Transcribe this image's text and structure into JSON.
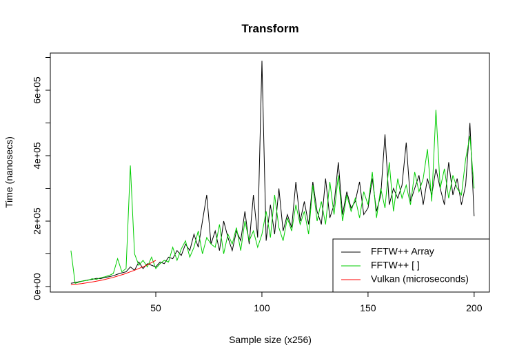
{
  "chart_data": {
    "type": "line",
    "title": "Transform",
    "x_label": "Sample size (x256)",
    "y_label": "Time (nanosecs)",
    "xlim": [
      0.3,
      207.2
    ],
    "xticks": [
      50,
      100,
      150,
      200
    ],
    "ylim": [
      -16800,
      713700
    ],
    "yticks": [
      {
        "value": 0,
        "label": "0e+00"
      },
      {
        "value": 100000,
        "label": null
      },
      {
        "value": 200000,
        "label": "2e+05"
      },
      {
        "value": 300000,
        "label": null
      },
      {
        "value": 400000,
        "label": "4e+05"
      },
      {
        "value": 500000,
        "label": null
      },
      {
        "value": 600000,
        "label": "6e+05"
      },
      {
        "value": 700000,
        "label": null
      }
    ],
    "legend": "bottomright",
    "series": [
      {
        "name": "FFTW++ Array",
        "color": "#000000",
        "x": [
          10,
          12,
          14,
          16,
          18,
          20,
          22,
          24,
          26,
          28,
          30,
          32,
          34,
          36,
          38,
          40,
          42,
          44,
          46,
          48,
          50,
          52,
          54,
          56,
          58,
          60,
          62,
          64,
          66,
          68,
          70,
          72,
          74,
          76,
          78,
          80,
          82,
          84,
          86,
          88,
          90,
          92,
          94,
          96,
          98,
          100,
          102,
          104,
          106,
          108,
          110,
          112,
          114,
          116,
          118,
          120,
          122,
          124,
          126,
          128,
          130,
          132,
          134,
          136,
          138,
          140,
          142,
          144,
          146,
          148,
          150,
          152,
          154,
          156,
          158,
          160,
          162,
          164,
          166,
          168,
          170,
          172,
          174,
          176,
          178,
          180,
          182,
          184,
          186,
          188,
          190,
          192,
          194,
          196,
          198,
          200
        ],
        "values": [
          10000,
          12000,
          15000,
          17000,
          20000,
          22000,
          25000,
          24000,
          28000,
          30000,
          33000,
          38000,
          42000,
          45000,
          60000,
          50000,
          75000,
          55000,
          70000,
          65000,
          60000,
          75000,
          70000,
          90000,
          85000,
          110000,
          95000,
          130000,
          110000,
          160000,
          120000,
          200000,
          280000,
          130000,
          170000,
          110000,
          200000,
          150000,
          110000,
          170000,
          140000,
          230000,
          130000,
          280000,
          150000,
          690000,
          140000,
          250000,
          160000,
          300000,
          170000,
          220000,
          180000,
          320000,
          200000,
          260000,
          190000,
          320000,
          230000,
          190000,
          330000,
          210000,
          250000,
          380000,
          220000,
          290000,
          240000,
          260000,
          320000,
          220000,
          240000,
          330000,
          230000,
          280000,
          465000,
          250000,
          300000,
          270000,
          310000,
          440000,
          260000,
          300000,
          340000,
          250000,
          330000,
          280000,
          360000,
          300000,
          250000,
          380000,
          280000,
          330000,
          250000,
          310000,
          500000,
          215000
        ]
      },
      {
        "name": "FFTW++ [ ]",
        "color": "#00cd00",
        "x": [
          10,
          12,
          14,
          16,
          18,
          20,
          22,
          24,
          26,
          28,
          30,
          32,
          34,
          36,
          38,
          40,
          42,
          44,
          46,
          48,
          50,
          52,
          54,
          56,
          58,
          60,
          62,
          64,
          66,
          68,
          70,
          72,
          74,
          76,
          78,
          80,
          82,
          84,
          86,
          88,
          90,
          92,
          94,
          96,
          98,
          100,
          102,
          104,
          106,
          108,
          110,
          112,
          114,
          116,
          118,
          120,
          122,
          124,
          126,
          128,
          130,
          132,
          134,
          136,
          138,
          140,
          142,
          144,
          146,
          148,
          150,
          152,
          154,
          156,
          158,
          160,
          162,
          164,
          166,
          168,
          170,
          172,
          174,
          176,
          178,
          180,
          182,
          184,
          186,
          188,
          190,
          192,
          194,
          196,
          198,
          200
        ],
        "values": [
          110000,
          10000,
          14000,
          18000,
          19000,
          24000,
          22000,
          27000,
          30000,
          34000,
          40000,
          85000,
          45000,
          55000,
          370000,
          100000,
          65000,
          80000,
          60000,
          90000,
          55000,
          70000,
          80000,
          75000,
          120000,
          80000,
          115000,
          140000,
          90000,
          120000,
          170000,
          100000,
          150000,
          130000,
          120000,
          190000,
          100000,
          160000,
          130000,
          180000,
          110000,
          200000,
          140000,
          170000,
          120000,
          160000,
          230000,
          150000,
          280000,
          180000,
          140000,
          210000,
          170000,
          250000,
          190000,
          230000,
          160000,
          310000,
          200000,
          260000,
          190000,
          320000,
          220000,
          340000,
          200000,
          280000,
          230000,
          270000,
          210000,
          290000,
          250000,
          350000,
          210000,
          300000,
          240000,
          380000,
          230000,
          330000,
          270000,
          310000,
          250000,
          350000,
          290000,
          330000,
          420000,
          260000,
          540000,
          300000,
          360000,
          270000,
          340000,
          300000,
          280000,
          390000,
          460000,
          300000
        ]
      },
      {
        "name": "Vulkan (microseconds)",
        "color": "#ff0000",
        "x": [
          10,
          15,
          20,
          25,
          30,
          35,
          40,
          45,
          50
        ],
        "values": [
          5000,
          9000,
          14000,
          20000,
          28000,
          38000,
          50000,
          63000,
          80000
        ]
      }
    ]
  }
}
